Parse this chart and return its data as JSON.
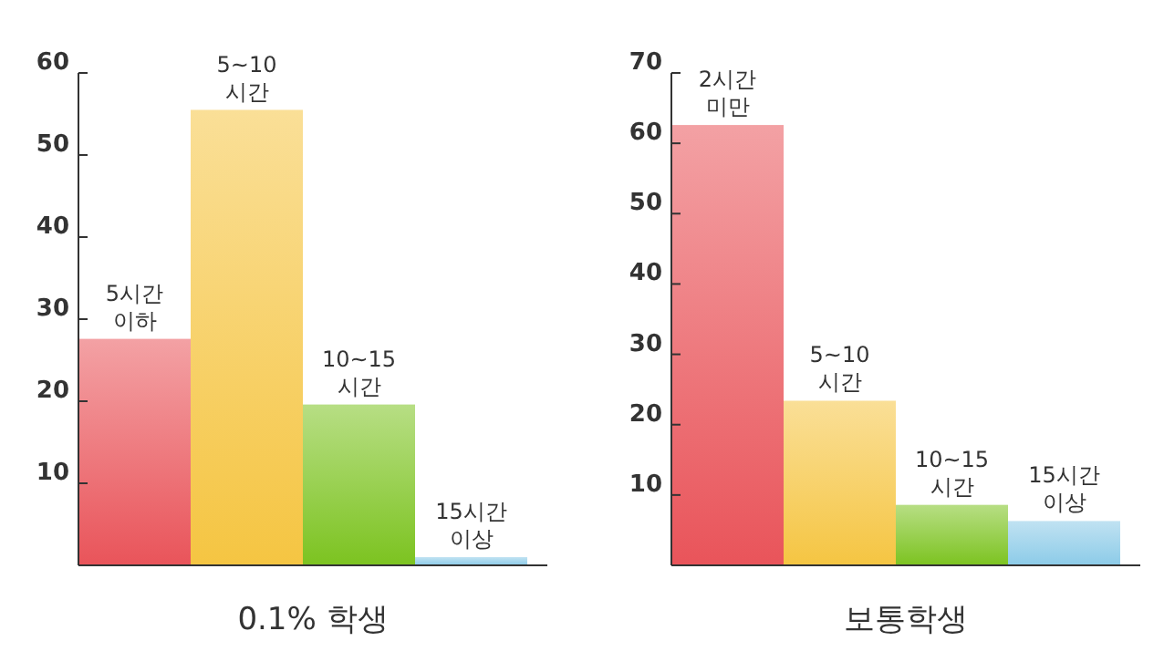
{
  "chart_data": [
    {
      "type": "bar",
      "xlabel": "0.1% 학생",
      "categories": [
        "5시간\n이하",
        "5~10\n시간",
        "10~15\n시간",
        "15시간\n이상"
      ],
      "values": [
        27.6,
        55.5,
        19.6,
        1.0
      ],
      "colors": [
        "#e9545a",
        "#f5c542",
        "#7cc320",
        "#8ccbe8"
      ],
      "ylim": [
        0,
        60
      ],
      "yticks": [
        10,
        20,
        30,
        40,
        50,
        60
      ]
    },
    {
      "type": "bar",
      "xlabel": "보통학생",
      "categories": [
        "2시간\n미만",
        "5~10\n시간",
        "10~15\n시간",
        "15시간\n이상"
      ],
      "values": [
        62.6,
        23.4,
        8.6,
        6.3
      ],
      "colors": [
        "#e9545a",
        "#f5c542",
        "#7cc320",
        "#8ccbe8"
      ],
      "ylim": [
        0,
        70
      ],
      "yticks": [
        10,
        20,
        30,
        40,
        50,
        60,
        70
      ]
    }
  ]
}
